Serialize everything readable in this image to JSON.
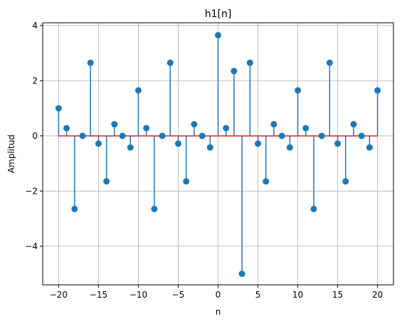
{
  "chart_data": {
    "type": "stem",
    "title": "h1[n]",
    "xlabel": "n",
    "ylabel": "Amplitud",
    "xlim": [
      -22,
      22
    ],
    "ylim": [
      -5.4,
      4.1
    ],
    "xticks": [
      -20,
      -15,
      -10,
      -5,
      0,
      5,
      10,
      15,
      20
    ],
    "xtick_labels": [
      "−20",
      "−15",
      "−10",
      "−5",
      "0",
      "5",
      "10",
      "15",
      "20"
    ],
    "yticks": [
      -4,
      -2,
      0,
      2,
      4
    ],
    "ytick_labels": [
      "−4",
      "−2",
      "0",
      "2",
      "4"
    ],
    "grid": true,
    "colors": {
      "stem": "#1f77b4",
      "baseline": "#d62728",
      "grid": "#b0b0b0"
    },
    "x": [
      -20,
      -19,
      -18,
      -17,
      -16,
      -15,
      -14,
      -13,
      -12,
      -11,
      -10,
      -9,
      -8,
      -7,
      -6,
      -5,
      -4,
      -3,
      -2,
      -1,
      0,
      1,
      2,
      3,
      4,
      5,
      6,
      7,
      8,
      9,
      10,
      11,
      12,
      13,
      14,
      15,
      16,
      17,
      18,
      19,
      20
    ],
    "y": [
      1.0,
      0.28,
      -2.65,
      0.0,
      2.65,
      -0.28,
      -1.65,
      0.42,
      0.0,
      -0.42,
      1.65,
      0.28,
      -2.65,
      0.0,
      2.65,
      -0.28,
      -1.65,
      0.42,
      0.0,
      -0.42,
      3.65,
      0.28,
      2.35,
      -5.0,
      2.65,
      -0.28,
      -1.65,
      0.42,
      0.0,
      -0.42,
      1.65,
      0.28,
      -2.65,
      0.0,
      2.65,
      -0.28,
      -1.65,
      0.42,
      0.0,
      -0.42,
      1.65
    ]
  }
}
